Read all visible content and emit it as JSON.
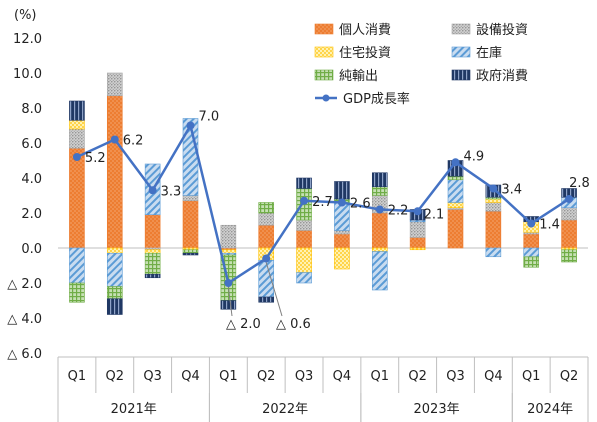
{
  "chart_data": {
    "type": "bar",
    "unit_label": "(%)",
    "ylim": [
      -6,
      12
    ],
    "yticks": [
      {
        "value": 12,
        "label": "12.0"
      },
      {
        "value": 10,
        "label": "10.0"
      },
      {
        "value": 8,
        "label": "8.0"
      },
      {
        "value": 6,
        "label": "6.0"
      },
      {
        "value": 4,
        "label": "4.0"
      },
      {
        "value": 2,
        "label": "2.0"
      },
      {
        "value": 0,
        "label": "0.0"
      },
      {
        "value": -2,
        "label": "△ 2.0"
      },
      {
        "value": -4,
        "label": "△ 4.0"
      },
      {
        "value": -6,
        "label": "△ 6.0"
      }
    ],
    "categories": [
      "Q1",
      "Q2",
      "Q3",
      "Q4",
      "Q1",
      "Q2",
      "Q3",
      "Q4",
      "Q1",
      "Q2",
      "Q3",
      "Q4",
      "Q1",
      "Q2"
    ],
    "years": [
      {
        "label": "2021年",
        "start": 0,
        "end": 4
      },
      {
        "label": "2022年",
        "start": 4,
        "end": 8
      },
      {
        "label": "2023年",
        "start": 8,
        "end": 12
      },
      {
        "label": "2024年",
        "start": 12,
        "end": 14
      }
    ],
    "series": [
      {
        "name": "個人消費",
        "color": "#ed7d31",
        "pattern": "dots-orange",
        "values": [
          5.7,
          8.7,
          1.9,
          2.7,
          -0.1,
          1.3,
          1.0,
          0.8,
          2.0,
          0.6,
          2.2,
          2.1,
          0.8,
          1.6
        ]
      },
      {
        "name": "設備投資",
        "color": "#a6a6a6",
        "pattern": "dots-gray",
        "values": [
          1.1,
          1.3,
          -0.1,
          0.3,
          1.3,
          0.7,
          0.6,
          0.2,
          1.0,
          0.9,
          0.1,
          0.5,
          0.1,
          0.7
        ]
      },
      {
        "name": "住宅投資",
        "color": "#ffc000",
        "pattern": "dots-yellow",
        "values": [
          0.5,
          -0.3,
          -0.2,
          -0.1,
          -0.2,
          -0.7,
          -1.4,
          -1.2,
          -0.2,
          -0.1,
          0.3,
          0.2,
          0.6,
          -0.1
        ]
      },
      {
        "name": "在庫",
        "color": "#5b9bd5",
        "pattern": "hatch-blue",
        "values": [
          -2.0,
          -1.9,
          2.9,
          4.4,
          -0.1,
          -2.1,
          -0.6,
          1.6,
          -2.2,
          0.1,
          1.3,
          -0.5,
          -0.5,
          0.6
        ]
      },
      {
        "name": "純輸出",
        "color": "#70ad47",
        "pattern": "grid-green",
        "values": [
          -1.1,
          -0.7,
          -1.2,
          -0.2,
          -2.6,
          0.6,
          1.8,
          0.2,
          0.5,
          0.0,
          0.2,
          0.1,
          -0.6,
          -0.7
        ]
      },
      {
        "name": "政府消費",
        "color": "#203864",
        "pattern": "vline-navy",
        "values": [
          1.1,
          -0.9,
          -0.2,
          -0.1,
          -0.5,
          -0.3,
          0.6,
          1.0,
          0.8,
          0.6,
          0.9,
          0.7,
          0.3,
          0.5
        ]
      }
    ],
    "line": {
      "name": "GDP成長率",
      "color": "#4472c4",
      "values": [
        5.2,
        6.2,
        3.3,
        7.0,
        -2.0,
        -0.6,
        2.7,
        2.6,
        2.2,
        2.1,
        4.9,
        3.4,
        1.4,
        2.8
      ],
      "labels": [
        "5.2",
        "6.2",
        "3.3",
        "7.0",
        "△ 2.0",
        "△ 0.6",
        "2.7",
        "2.6",
        "2.2",
        "2.1",
        "4.9",
        "3.4",
        "1.4",
        "2.8"
      ]
    },
    "legend_position": "top-right"
  }
}
